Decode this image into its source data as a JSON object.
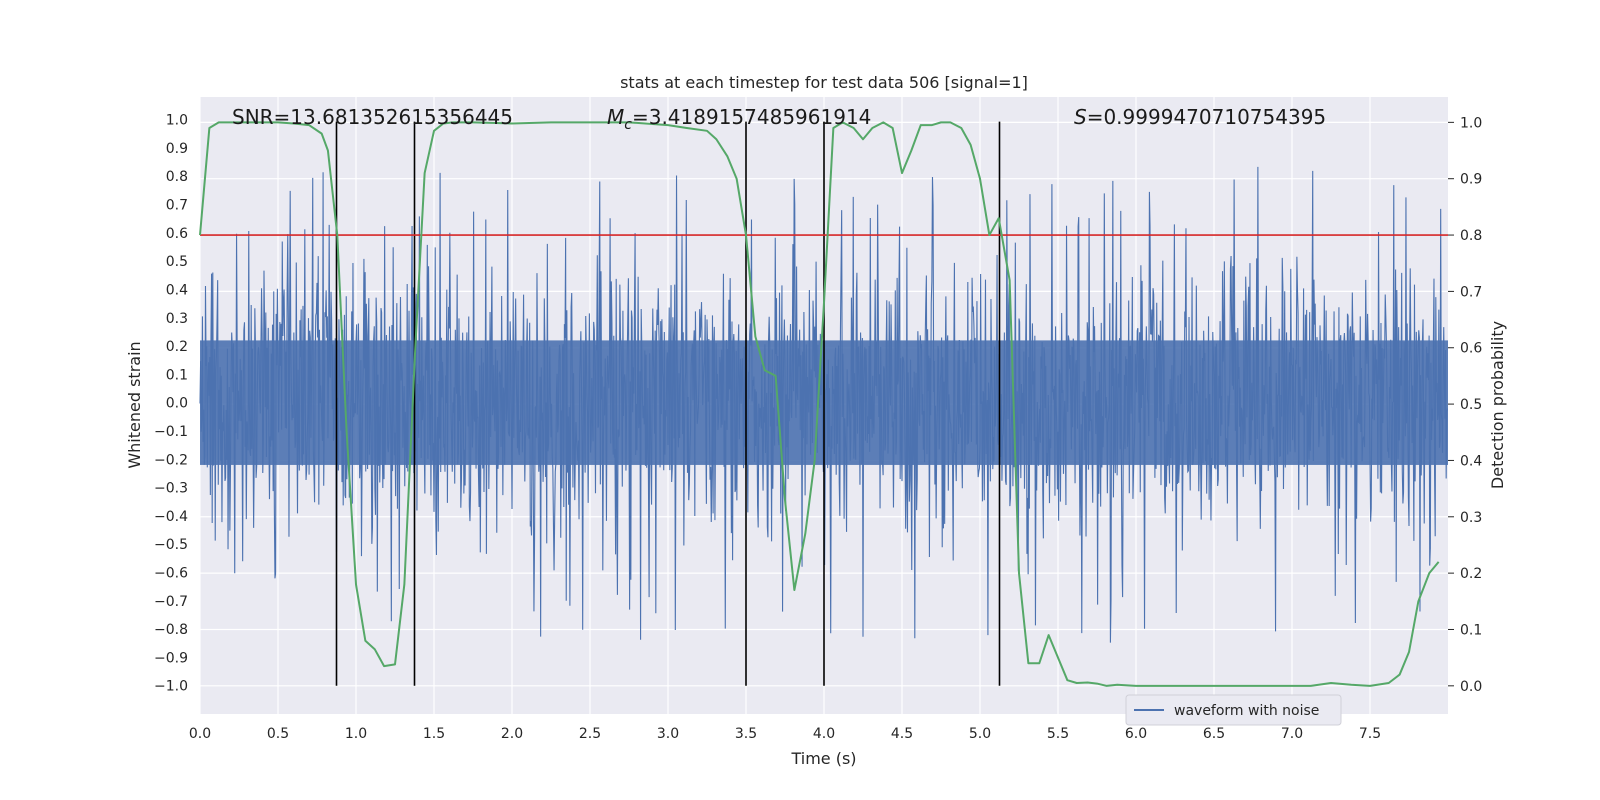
{
  "chart_data": {
    "type": "line",
    "title": "stats at each timestep for test data 506 [signal=1]",
    "xlabel": "Time (s)",
    "ylabel_left": "Whitened strain",
    "ylabel_right": "Detection probability",
    "xlim": [
      0,
      8
    ],
    "ylim_left": [
      -1.1,
      1.08
    ],
    "ylim_right": [
      -0.05,
      1.045
    ],
    "xticks": [
      0.0,
      0.5,
      1.0,
      1.5,
      2.0,
      2.5,
      3.0,
      3.5,
      4.0,
      4.5,
      5.0,
      5.5,
      6.0,
      6.5,
      7.0,
      7.5
    ],
    "xtick_labels": [
      "0.0",
      "0.5",
      "1.0",
      "1.5",
      "2.0",
      "2.5",
      "3.0",
      "3.5",
      "4.0",
      "4.5",
      "5.0",
      "5.5",
      "6.0",
      "6.5",
      "7.0",
      "7.5"
    ],
    "yticks_left": [
      -1.0,
      -0.9,
      -0.8,
      -0.7,
      -0.6,
      -0.5,
      -0.4,
      -0.3,
      -0.2,
      -0.1,
      0.0,
      0.1,
      0.2,
      0.3,
      0.4,
      0.5,
      0.6,
      0.7,
      0.8,
      0.9,
      1.0
    ],
    "ytick_labels_left": [
      "−1.0",
      "−0.9",
      "−0.8",
      "−0.7",
      "−0.6",
      "−0.5",
      "−0.4",
      "−0.3",
      "−0.2",
      "−0.1",
      "0.0",
      "0.1",
      "0.2",
      "0.3",
      "0.4",
      "0.5",
      "0.6",
      "0.7",
      "0.8",
      "0.9",
      "1.0"
    ],
    "yticks_right": [
      0.0,
      0.1,
      0.2,
      0.3,
      0.4,
      0.5,
      0.6,
      0.7,
      0.8,
      0.9,
      1.0
    ],
    "ytick_labels_right": [
      "0.0",
      "0.1",
      "0.2",
      "0.3",
      "0.4",
      "0.5",
      "0.6",
      "0.7",
      "0.8",
      "0.9",
      "1.0"
    ],
    "threshold": 0.8,
    "vertical_lines_x": [
      0.875,
      1.375,
      3.5,
      4.0,
      5.125
    ],
    "vertical_lines_range": [
      -1.0,
      1.0
    ],
    "annotations": {
      "snr": "SNR=13.681352615356445",
      "mc_symbol": "M",
      "mc_sub": "c",
      "mc_value": "=3.4189157485961914",
      "s_symbol": "S",
      "s_value": "=0.9999470710754395"
    },
    "legend": {
      "label": "waveform with noise",
      "placement": "lower-right"
    },
    "series": [
      {
        "name": "waveform with noise",
        "axis": "left",
        "color": "#4c72b0",
        "kind": "noise",
        "envelope": 0.4,
        "n": 2048
      },
      {
        "name": "detection probability",
        "axis": "right",
        "color": "#55a868",
        "x": [
          0.0,
          0.06,
          0.12,
          0.2,
          0.3,
          0.4,
          0.5,
          0.6,
          0.7,
          0.78,
          0.82,
          0.88,
          0.94,
          1.0,
          1.06,
          1.12,
          1.18,
          1.25,
          1.31,
          1.38,
          1.44,
          1.5,
          1.56,
          1.62,
          1.75,
          2.0,
          2.25,
          2.5,
          2.75,
          3.0,
          3.12,
          3.25,
          3.31,
          3.38,
          3.44,
          3.5,
          3.56,
          3.62,
          3.69,
          3.75,
          3.81,
          3.88,
          3.94,
          4.0,
          4.06,
          4.12,
          4.19,
          4.25,
          4.31,
          4.38,
          4.44,
          4.5,
          4.56,
          4.62,
          4.69,
          4.75,
          4.81,
          4.88,
          4.94,
          5.0,
          5.06,
          5.12,
          5.19,
          5.25,
          5.31,
          5.38,
          5.44,
          5.5,
          5.56,
          5.62,
          5.69,
          5.75,
          5.81,
          5.88,
          6.0,
          6.25,
          6.5,
          6.75,
          7.0,
          7.12,
          7.25,
          7.38,
          7.5,
          7.62,
          7.69,
          7.75,
          7.81,
          7.88,
          7.94
        ],
        "y": [
          0.8,
          0.99,
          1.0,
          1.0,
          1.0,
          1.0,
          1.0,
          0.998,
          0.995,
          0.98,
          0.95,
          0.8,
          0.45,
          0.18,
          0.08,
          0.065,
          0.035,
          0.038,
          0.18,
          0.6,
          0.91,
          0.985,
          0.998,
          1.0,
          1.0,
          0.998,
          1.0,
          1.0,
          1.0,
          0.995,
          0.99,
          0.985,
          0.97,
          0.94,
          0.9,
          0.8,
          0.62,
          0.56,
          0.55,
          0.33,
          0.17,
          0.27,
          0.4,
          0.68,
          0.99,
          1.0,
          0.99,
          0.97,
          0.99,
          1.0,
          0.99,
          0.91,
          0.95,
          0.995,
          0.995,
          1.0,
          1.0,
          0.99,
          0.96,
          0.9,
          0.8,
          0.83,
          0.72,
          0.2,
          0.04,
          0.04,
          0.09,
          0.05,
          0.01,
          0.005,
          0.006,
          0.004,
          0.0,
          0.002,
          0.0,
          0.0,
          0.0,
          0.0,
          0.0,
          0.0,
          0.005,
          0.002,
          0.0,
          0.005,
          0.02,
          0.06,
          0.15,
          0.2,
          0.22
        ]
      }
    ]
  }
}
